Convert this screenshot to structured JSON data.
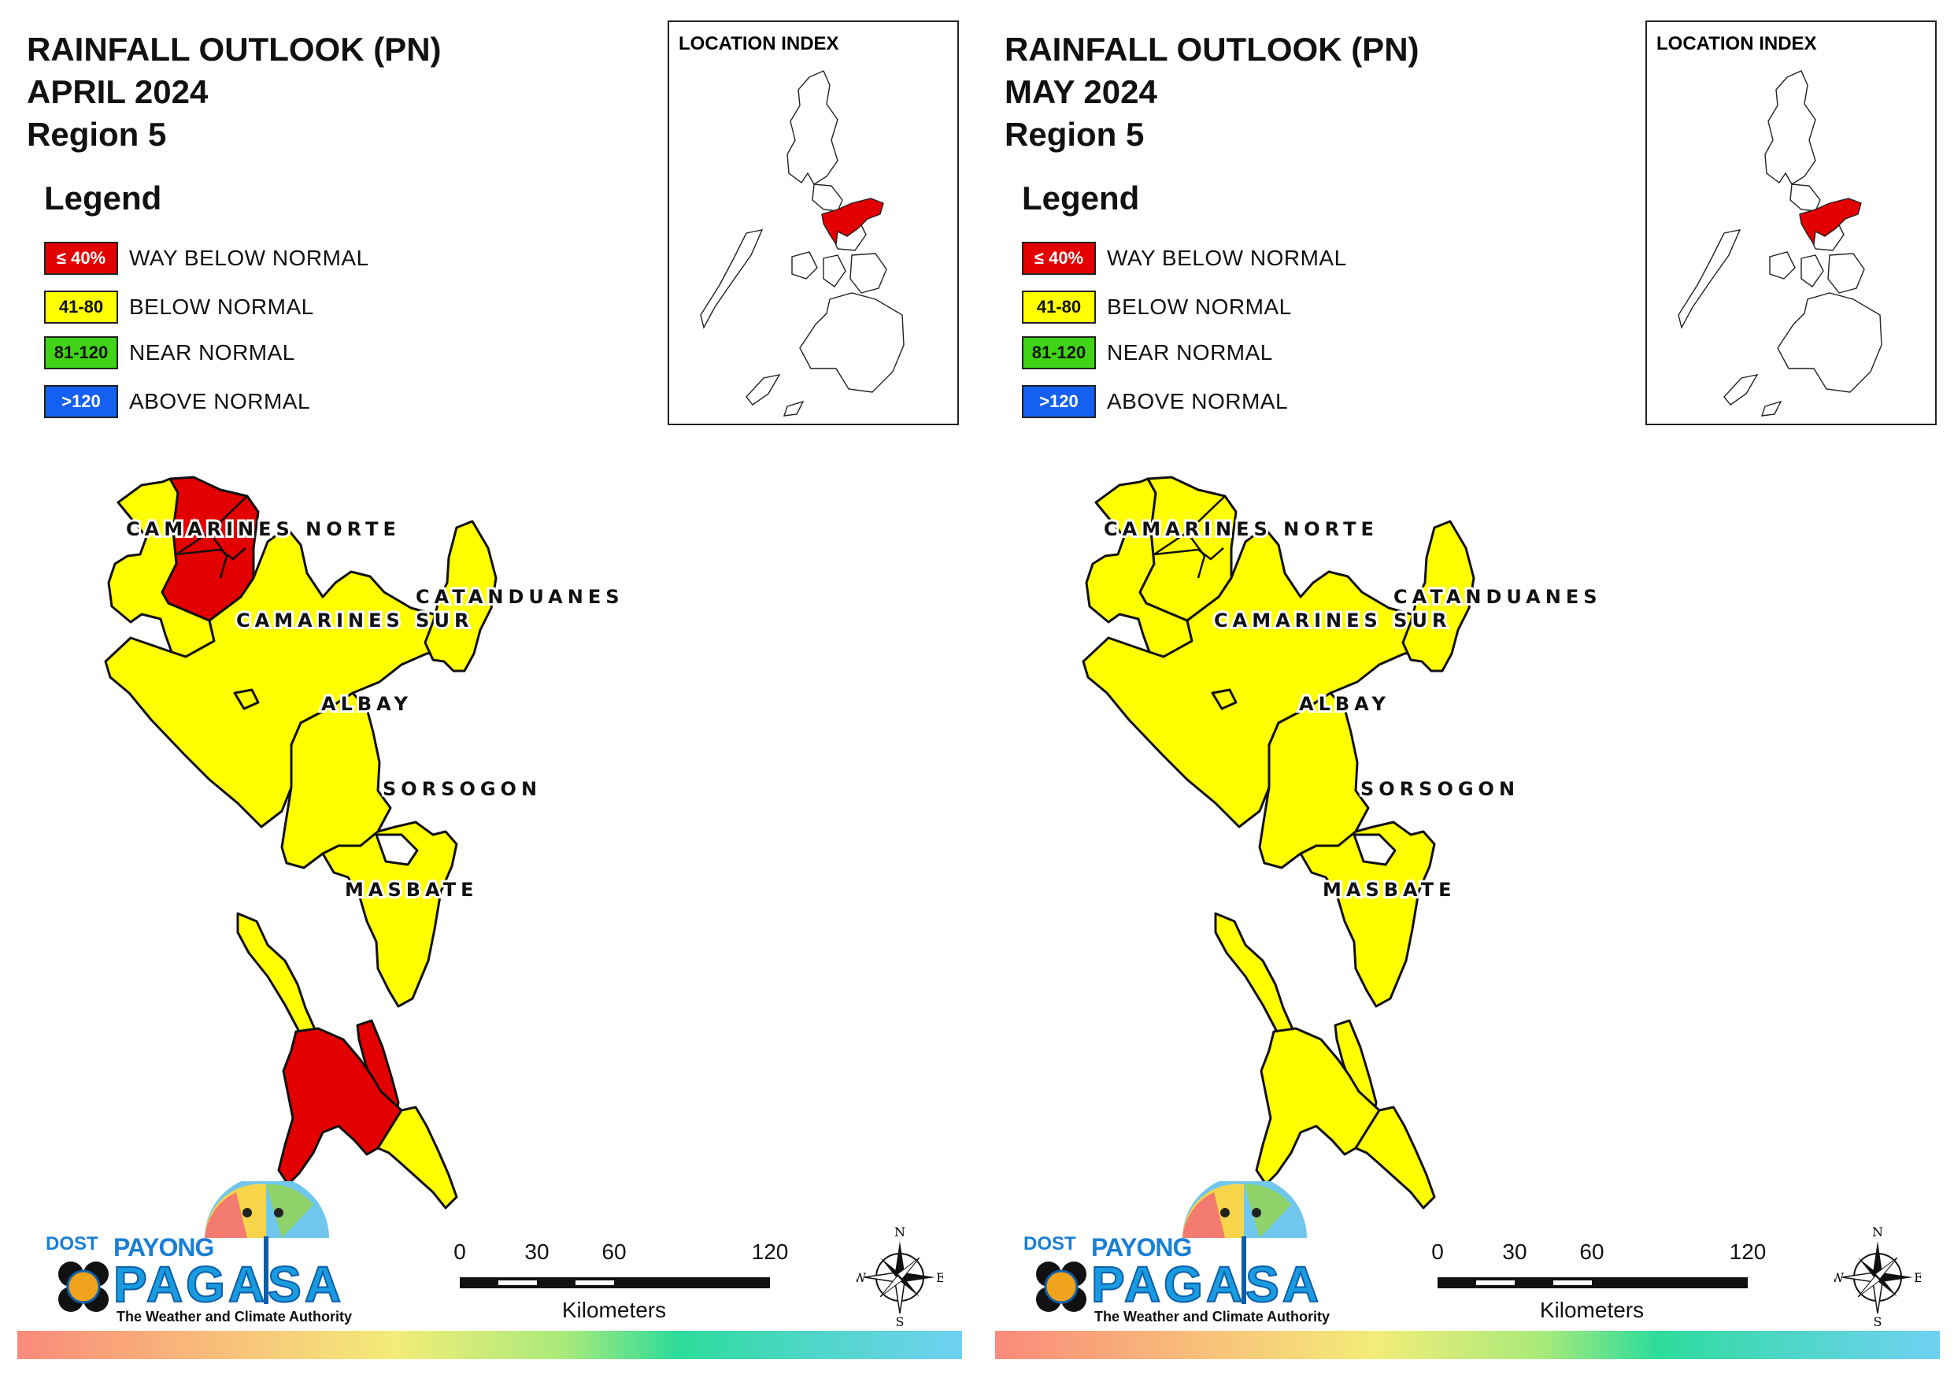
{
  "panels": [
    {
      "title_line1": "RAINFALL OUTLOOK (PN)",
      "title_line2": "APRIL 2024",
      "title_line3": "Region 5",
      "fills": {
        "cam_norte_w": "#ffff00",
        "cam_norte_e": "#e30000",
        "cam_sur": "#ffff00",
        "catanduanes": "#ffff00",
        "albay": "#ffff00",
        "sorsogon": "#ffff00",
        "burias": "#ffff00",
        "ticao": "#e30000",
        "masbate_main": "#e30000",
        "masbate_se": "#ffff00"
      }
    },
    {
      "title_line1": "RAINFALL OUTLOOK (PN)",
      "title_line2": "MAY 2024",
      "title_line3": "Region 5",
      "fills": {
        "cam_norte_w": "#ffff00",
        "cam_norte_e": "#ffff00",
        "cam_sur": "#ffff00",
        "catanduanes": "#ffff00",
        "albay": "#ffff00",
        "sorsogon": "#ffff00",
        "burias": "#ffff00",
        "ticao": "#ffff00",
        "masbate_main": "#ffff00",
        "masbate_se": "#ffff00"
      }
    }
  ],
  "legend": {
    "title": "Legend",
    "items": [
      {
        "range": "≤ 40%",
        "label": "WAY BELOW NORMAL",
        "color": "#e30000",
        "text_color": "#ffffff"
      },
      {
        "range": "41-80",
        "label": "BELOW NORMAL",
        "color": "#ffff00",
        "text_color": "#111111"
      },
      {
        "range": "81-120",
        "label": "NEAR NORMAL",
        "color": "#3fd416",
        "text_color": "#111111"
      },
      {
        "range": ">120",
        "label": "ABOVE NORMAL",
        "color": "#1560f0",
        "text_color": "#ffffff"
      }
    ]
  },
  "location_index": {
    "label": "LOCATION INDEX",
    "highlight_color": "#e30000"
  },
  "provinces": {
    "camarines_norte": "CAMARINES NORTE",
    "camarines_sur": "CAMARINES SUR",
    "catanduanes": "CATANDUANES",
    "albay": "ALBAY",
    "sorsogon": "SORSOGON",
    "masbate": "MASBATE"
  },
  "scale_bar": {
    "ticks": [
      "0",
      "30",
      "60",
      "120"
    ],
    "unit": "Kilometers"
  },
  "compass": {
    "n": "N",
    "s": "S",
    "e": "E",
    "w": "W"
  },
  "logo": {
    "dost": "DOST",
    "payong": "PAYONG",
    "pagasa": "PAGASA",
    "tagline": "The Weather and Climate Authority"
  }
}
